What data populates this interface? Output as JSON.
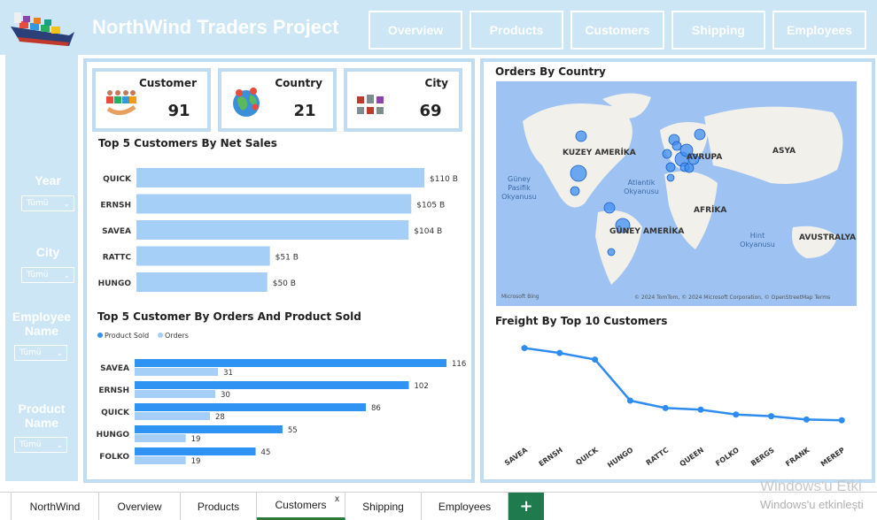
{
  "header": {
    "title": "NorthWind Traders Project",
    "nav": [
      "Overview",
      "Products",
      "Customers",
      "Shipping",
      "Employees"
    ]
  },
  "filters": [
    {
      "label": "Year",
      "value": "Tümü"
    },
    {
      "label": "City",
      "value": "Tümü"
    },
    {
      "label": "Employee Name",
      "value": "Tümü"
    },
    {
      "label": "Product Name",
      "value": "Tümü"
    }
  ],
  "kpis": [
    {
      "title": "Customer",
      "value": "91",
      "icon": "people-icon"
    },
    {
      "title": "Country",
      "value": "21",
      "icon": "globe-pins-icon"
    },
    {
      "title": "City",
      "value": "69",
      "icon": "city-buildings-icon"
    }
  ],
  "sections": {
    "top_sales": "Top 5 Customers By Net Sales",
    "top_orders": "Top 5 Customer By Orders And Product Sold",
    "map": "Orders By Country",
    "freight": "Freight By Top 10 Customers"
  },
  "map_labels": {
    "north_america": "KUZEY AMERİKA",
    "south_america": "GÜNEY AMERİKA",
    "europe": "AVRUPA",
    "asia": "ASYA",
    "africa": "AFRİKA",
    "australia": "AVUSTRALYA",
    "pacific": "Güney Pasifik Okyanusu",
    "atlantic": "Atlantik Okyanusu",
    "indian": "Hint Okyanusu",
    "attribution": "© 2024 TomTom, © 2024 Microsoft Corporation, © OpenStreetMap  Terms",
    "provider": "Microsoft Bing"
  },
  "chart_data": [
    {
      "type": "bar",
      "orientation": "horizontal",
      "title": "Top 5 Customers By Net Sales",
      "categories": [
        "QUICK",
        "ERNSH",
        "SAVEA",
        "RATTC",
        "HUNGO"
      ],
      "values": [
        110,
        105,
        104,
        51,
        50
      ],
      "data_labels": [
        "$110 B",
        "$105 B",
        "$104 B",
        "$51 B",
        "$50 B"
      ],
      "color": "#a5cff7"
    },
    {
      "type": "bar",
      "orientation": "horizontal",
      "title": "Top 5 Customer By Orders And Product Sold",
      "categories": [
        "SAVEA",
        "ERNSH",
        "QUICK",
        "HUNGO",
        "FOLKO"
      ],
      "series": [
        {
          "name": "Product Sold",
          "values": [
            116,
            102,
            86,
            55,
            45
          ],
          "color": "#2e93f2"
        },
        {
          "name": "Orders",
          "values": [
            31,
            30,
            28,
            19,
            19
          ],
          "color": "#a5cff7"
        }
      ],
      "legend": "top-left"
    },
    {
      "type": "line",
      "title": "Freight By Top 10 Customers",
      "categories": [
        "SAVEA",
        "ERNSH",
        "QUICK",
        "HUNGO",
        "RATTC",
        "QUEEN",
        "FOLKO",
        "BERGS",
        "FRANK",
        "MEREP"
      ],
      "values": [
        6700,
        6400,
        6000,
        3500,
        3050,
        2950,
        2650,
        2550,
        2350,
        2300
      ],
      "ylim": [
        0,
        7000
      ],
      "color": "#2e8cf0"
    }
  ],
  "tabs": {
    "items": [
      "NorthWind",
      "Overview",
      "Products",
      "Customers",
      "Shipping",
      "Employees"
    ],
    "active": "Customers",
    "close": "x",
    "add": "+"
  },
  "watermark": {
    "line1": "Windows'u Etki",
    "line2": "Windows'u etkinleşti"
  }
}
